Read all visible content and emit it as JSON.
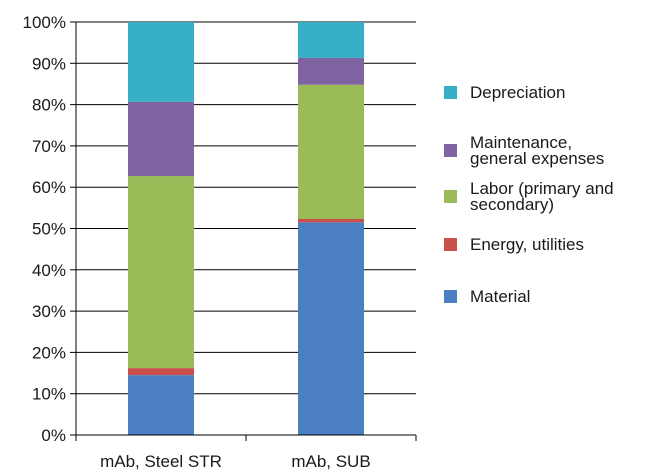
{
  "chart_data": {
    "type": "bar",
    "stacked": true,
    "percent": true,
    "title": "",
    "xlabel": "",
    "ylabel": "",
    "ylim": [
      0,
      100
    ],
    "yticks": [
      "0%",
      "10%",
      "20%",
      "30%",
      "40%",
      "50%",
      "60%",
      "70%",
      "80%",
      "90%",
      "100%"
    ],
    "categories": [
      "mAb, Steel STR",
      "mAb, SUB"
    ],
    "grid": true,
    "legend_position": "right",
    "series": [
      {
        "name": "Material",
        "color": "#4a7fc1",
        "values": [
          14.5,
          51.5
        ]
      },
      {
        "name": "Energy, utilities",
        "color": "#c9504b",
        "values": [
          1.7,
          0.8
        ]
      },
      {
        "name": "Labor (primary and secondary)",
        "color": "#9bbb59",
        "values": [
          46.5,
          32.5
        ]
      },
      {
        "name": "Maintenance, general expenses",
        "color": "#8064a2",
        "values": [
          18,
          6.5
        ]
      },
      {
        "name": "Depreciation",
        "color": "#35aec6",
        "values": [
          19.3,
          8.7
        ]
      }
    ],
    "legend": {
      "order": [
        4,
        3,
        2,
        1,
        0
      ],
      "lines": [
        [
          "Depreciation"
        ],
        [
          "Maintenance,",
          "general expenses"
        ],
        [
          "Labor (primary and",
          "secondary)"
        ],
        [
          "Energy, utilities"
        ],
        [
          "Material"
        ]
      ]
    }
  }
}
